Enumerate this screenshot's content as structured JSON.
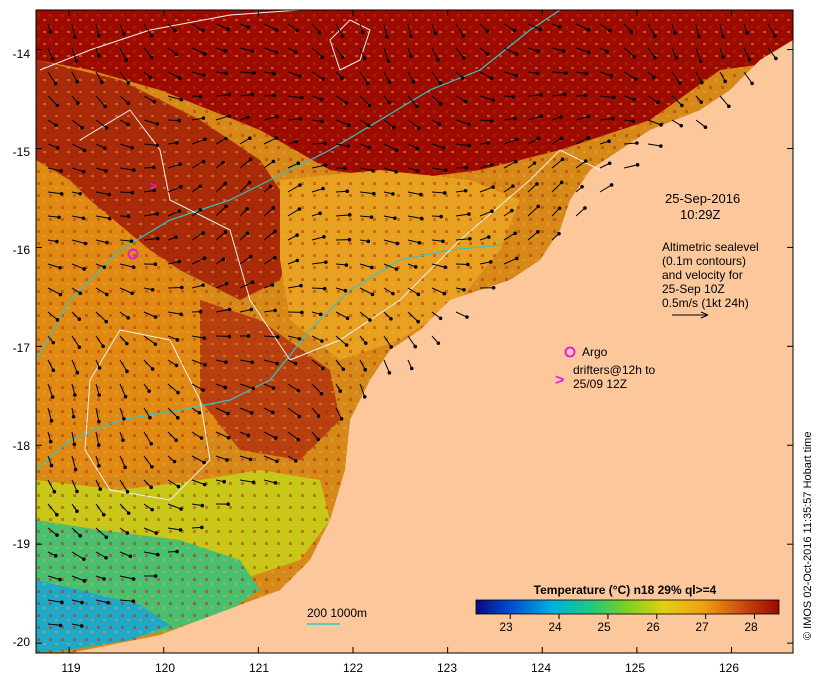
{
  "map": {
    "lon_range": [
      118.65,
      126.65
    ],
    "lat_range": [
      -20.1,
      -13.6
    ],
    "lon_ticks": [
      119,
      120,
      121,
      122,
      123,
      124,
      125,
      126
    ],
    "lat_ticks": [
      -14,
      -15,
      -16,
      -17,
      -18,
      -19,
      -20
    ],
    "lon_tick_labels": [
      "119",
      "120",
      "121",
      "122",
      "123",
      "124",
      "125",
      "126"
    ],
    "lat_tick_labels": [
      "-14",
      "-15",
      "-16",
      "-17",
      "-18",
      "-19",
      "-20"
    ],
    "land_color": "#fcc89b",
    "ocean_color": "#cf7a10"
  },
  "annotations": {
    "date": "25-Sep-2016",
    "time": "10:29Z",
    "altimetry_line1": "Altimetric sealevel",
    "altimetry_line2": "(0.1m contours)",
    "altimetry_line3": "and velocity for",
    "altimetry_line4": "25-Sep 10Z",
    "altimetry_line5": "0.5m/s (1kt 24h)",
    "argo_label": "Argo",
    "drifters_line1": "drifters@12h to",
    "drifters_line2": "25/09 12Z",
    "bathy_label": "200  1000m"
  },
  "colorbar": {
    "title": "Temperature (°C) n18 29% ql>=4",
    "tick_labels": [
      "23",
      "24",
      "25",
      "26",
      "27",
      "28"
    ],
    "range": [
      22.3,
      28.5
    ],
    "ticks": [
      23,
      24,
      25,
      26,
      27,
      28
    ]
  },
  "credit": "© IMOS 02-Oct-2016 11:35:57 Hobart time",
  "colors": {
    "argo": "#e020e0",
    "bathy_contour": "#30c8c8",
    "sealevel_contour": "#f0f0f0",
    "very_warm": "#9c0a00",
    "warm": "#c04a08",
    "mid": "#e09010",
    "cool": "#60c030",
    "cold": "#20a0c0"
  }
}
